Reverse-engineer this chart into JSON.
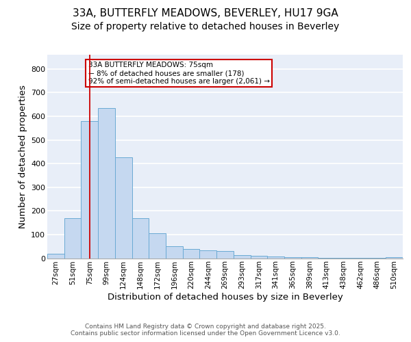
{
  "title": "33A, BUTTERFLY MEADOWS, BEVERLEY, HU17 9GA",
  "subtitle": "Size of property relative to detached houses in Beverley",
  "xlabel": "Distribution of detached houses by size in Beverley",
  "ylabel": "Number of detached properties",
  "categories": [
    "27sqm",
    "51sqm",
    "75sqm",
    "99sqm",
    "124sqm",
    "148sqm",
    "172sqm",
    "196sqm",
    "220sqm",
    "244sqm",
    "269sqm",
    "293sqm",
    "317sqm",
    "341sqm",
    "365sqm",
    "389sqm",
    "413sqm",
    "438sqm",
    "462sqm",
    "486sqm",
    "510sqm"
  ],
  "values": [
    20,
    168,
    580,
    635,
    425,
    170,
    105,
    52,
    40,
    33,
    30,
    14,
    10,
    8,
    5,
    3,
    2,
    2,
    1,
    1,
    5
  ],
  "bar_color": "#c5d8f0",
  "bar_edge_color": "#6aaad4",
  "vline_x_index": 2,
  "vline_color": "#cc0000",
  "annotation_text": "33A BUTTERFLY MEADOWS: 75sqm\n← 8% of detached houses are smaller (178)\n92% of semi-detached houses are larger (2,061) →",
  "annotation_box_color": "#cc0000",
  "annotation_text_color": "#000000",
  "annotation_fill_color": "#ffffff",
  "ylim": [
    0,
    860
  ],
  "yticks": [
    0,
    100,
    200,
    300,
    400,
    500,
    600,
    700,
    800
  ],
  "footer_text": "Contains HM Land Registry data © Crown copyright and database right 2025.\nContains public sector information licensed under the Open Government Licence v3.0.",
  "background_color": "#e8eef8",
  "grid_color": "#ffffff",
  "title_fontsize": 11,
  "subtitle_fontsize": 10,
  "axis_label_fontsize": 9,
  "tick_fontsize": 7.5,
  "annotation_fontsize": 7.5,
  "footer_fontsize": 6.5
}
